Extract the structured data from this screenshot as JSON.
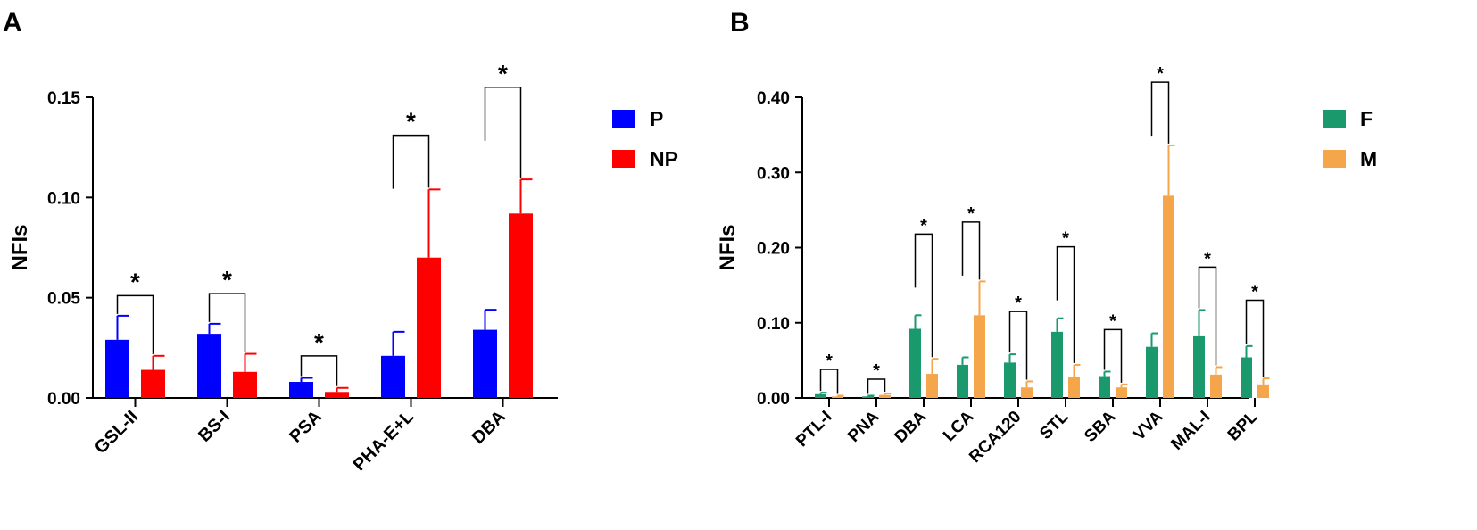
{
  "panels": [
    {
      "label": "A"
    },
    {
      "label": "B"
    }
  ],
  "chart_data": [
    {
      "type": "bar",
      "ylabel": "NFIs",
      "ylim": [
        0,
        0.15
      ],
      "yticks": [
        0,
        0.05,
        0.1,
        0.15
      ],
      "ytick_labels": [
        "0.00",
        "0.05",
        "0.10",
        "0.15"
      ],
      "categories": [
        "GSL-II",
        "BS-I",
        "PSA",
        "PHA-E+L",
        "DBA"
      ],
      "legend_position": "top-right",
      "series": [
        {
          "name": "P",
          "color": "#0000ff",
          "values": [
            0.029,
            0.032,
            0.008,
            0.021,
            0.034
          ],
          "errors": [
            0.012,
            0.005,
            0.002,
            0.012,
            0.01
          ]
        },
        {
          "name": "NP",
          "color": "#ff0000",
          "values": [
            0.014,
            0.013,
            0.003,
            0.07,
            0.092
          ],
          "errors": [
            0.007,
            0.009,
            0.002,
            0.034,
            0.017
          ]
        }
      ],
      "significance": [
        {
          "label": "*",
          "bracket_y": 0.051
        },
        {
          "label": "*",
          "bracket_y": 0.052
        },
        {
          "label": "*",
          "bracket_y": 0.021
        },
        {
          "label": "*",
          "bracket_y": 0.131
        },
        {
          "label": "*",
          "bracket_y": 0.155
        }
      ]
    },
    {
      "type": "bar",
      "ylabel": "NFIs",
      "ylim": [
        0,
        0.4
      ],
      "yticks": [
        0,
        0.1,
        0.2,
        0.3,
        0.4
      ],
      "ytick_labels": [
        "0.00",
        "0.10",
        "0.20",
        "0.30",
        "0.40"
      ],
      "categories": [
        "PTL-I",
        "PNA",
        "DBA",
        "LCA",
        "RCA120",
        "STL",
        "SBA",
        "VVA",
        "MAL-I",
        "BPL"
      ],
      "legend_position": "top-right",
      "series": [
        {
          "name": "F",
          "color": "#1a9a6c",
          "values": [
            0.005,
            0.002,
            0.092,
            0.044,
            0.047,
            0.088,
            0.029,
            0.068,
            0.082,
            0.054
          ],
          "errors": [
            0.002,
            0.001,
            0.018,
            0.01,
            0.011,
            0.018,
            0.006,
            0.018,
            0.035,
            0.015
          ]
        },
        {
          "name": "M",
          "color": "#f5a54a",
          "values": [
            0.002,
            0.004,
            0.032,
            0.11,
            0.014,
            0.028,
            0.014,
            0.269,
            0.031,
            0.018
          ],
          "errors": [
            0.001,
            0.002,
            0.02,
            0.045,
            0.008,
            0.016,
            0.004,
            0.067,
            0.01,
            0.008
          ]
        }
      ],
      "significance": [
        {
          "label": "*",
          "bracket_y": 0.038
        },
        {
          "label": "*",
          "bracket_y": 0.025
        },
        {
          "label": "*",
          "bracket_y": 0.218
        },
        {
          "label": "*",
          "bracket_y": 0.234
        },
        {
          "label": "*",
          "bracket_y": 0.115
        },
        {
          "label": "*",
          "bracket_y": 0.201
        },
        {
          "label": "*",
          "bracket_y": 0.091
        },
        {
          "label": "*",
          "bracket_y": 0.42
        },
        {
          "label": "*",
          "bracket_y": 0.174
        },
        {
          "label": "*",
          "bracket_y": 0.13
        }
      ]
    }
  ]
}
